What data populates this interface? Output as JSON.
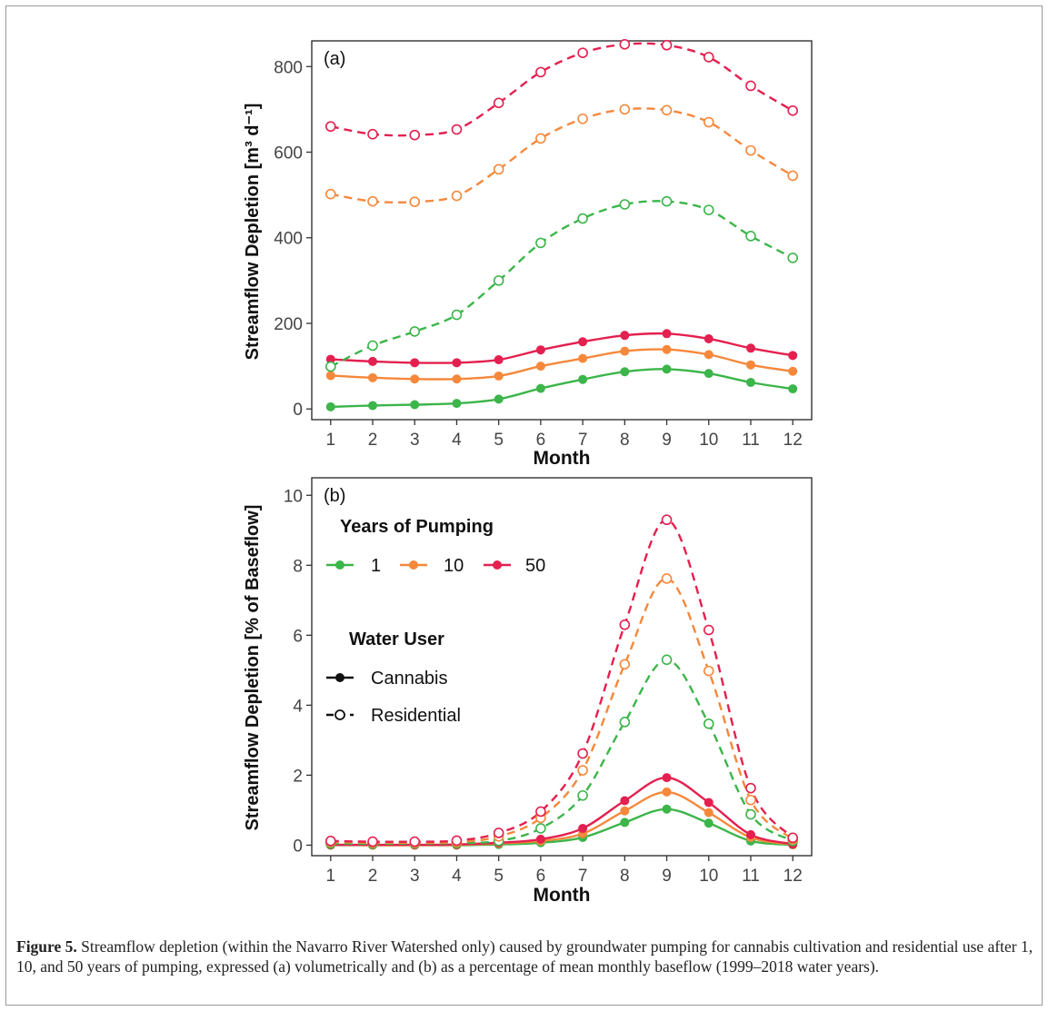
{
  "caption": {
    "label": "Figure 5.",
    "text": " Streamflow depletion (within the Navarro River Watershed only) caused by groundwater pumping for cannabis cultivation and residential use after 1, 10, and 50 years of pumping, expressed (a) volumetrically and (b) as a percentage of mean monthly baseflow (1999–2018 water years)."
  },
  "colors": {
    "1": "#3cb54a",
    "10": "#f5883b",
    "50": "#e3204f"
  },
  "legend": {
    "years_title": "Years of Pumping",
    "years": [
      "1",
      "10",
      "50"
    ],
    "user_title": "Water User",
    "users": [
      "Cannabis",
      "Residential"
    ]
  },
  "chart_data": [
    {
      "type": "line",
      "panel_label": "(a)",
      "xlabel": "Month",
      "ylabel": "Streamflow Depletion [m³ d⁻¹]",
      "x": [
        1,
        2,
        3,
        4,
        5,
        6,
        7,
        8,
        9,
        10,
        11,
        12
      ],
      "ylim": [
        -25,
        860
      ],
      "yticks": [
        0,
        200,
        400,
        600,
        800
      ],
      "series": [
        {
          "years": "1",
          "user": "Cannabis",
          "values": [
            5,
            8,
            10,
            13,
            23,
            48,
            69,
            87,
            93,
            83,
            62,
            47
          ]
        },
        {
          "years": "10",
          "user": "Cannabis",
          "values": [
            78,
            73,
            70,
            70,
            77,
            100,
            118,
            135,
            139,
            127,
            103,
            88
          ]
        },
        {
          "years": "50",
          "user": "Cannabis",
          "values": [
            116,
            111,
            108,
            108,
            115,
            138,
            157,
            172,
            176,
            164,
            142,
            125
          ]
        },
        {
          "years": "1",
          "user": "Residential",
          "values": [
            99,
            148,
            181,
            220,
            300,
            388,
            445,
            478,
            485,
            465,
            404,
            353
          ]
        },
        {
          "years": "10",
          "user": "Residential",
          "values": [
            502,
            485,
            484,
            498,
            560,
            632,
            678,
            700,
            698,
            670,
            604,
            545
          ]
        },
        {
          "years": "50",
          "user": "Residential",
          "values": [
            660,
            642,
            640,
            653,
            715,
            787,
            832,
            852,
            850,
            822,
            755,
            697
          ]
        }
      ]
    },
    {
      "type": "line",
      "panel_label": "(b)",
      "xlabel": "Month",
      "ylabel": "Streamflow Depletion [% of Baseflow]",
      "x": [
        1,
        2,
        3,
        4,
        5,
        6,
        7,
        8,
        9,
        10,
        11,
        12
      ],
      "ylim": [
        -0.3,
        10.5
      ],
      "yticks": [
        0,
        2,
        4,
        6,
        8,
        10
      ],
      "series": [
        {
          "years": "1",
          "user": "Cannabis",
          "values": [
            0.0,
            0.0,
            0.0,
            0.0,
            0.02,
            0.07,
            0.22,
            0.65,
            1.03,
            0.63,
            0.12,
            0.01
          ]
        },
        {
          "years": "10",
          "user": "Cannabis",
          "values": [
            0.01,
            0.0,
            0.0,
            0.01,
            0.05,
            0.12,
            0.33,
            0.98,
            1.52,
            0.93,
            0.22,
            0.02
          ]
        },
        {
          "years": "50",
          "user": "Cannabis",
          "values": [
            0.01,
            0.01,
            0.01,
            0.02,
            0.07,
            0.17,
            0.48,
            1.27,
            1.93,
            1.22,
            0.3,
            0.03
          ]
        },
        {
          "years": "1",
          "user": "Residential",
          "values": [
            0.05,
            0.04,
            0.05,
            0.06,
            0.12,
            0.48,
            1.42,
            3.52,
            5.3,
            3.47,
            0.88,
            0.12
          ]
        },
        {
          "years": "10",
          "user": "Residential",
          "values": [
            0.09,
            0.07,
            0.07,
            0.09,
            0.25,
            0.78,
            2.14,
            5.17,
            7.62,
            4.98,
            1.29,
            0.17
          ]
        },
        {
          "years": "50",
          "user": "Residential",
          "values": [
            0.12,
            0.1,
            0.1,
            0.13,
            0.35,
            0.96,
            2.62,
            6.3,
            9.3,
            6.15,
            1.63,
            0.21
          ]
        }
      ]
    }
  ]
}
